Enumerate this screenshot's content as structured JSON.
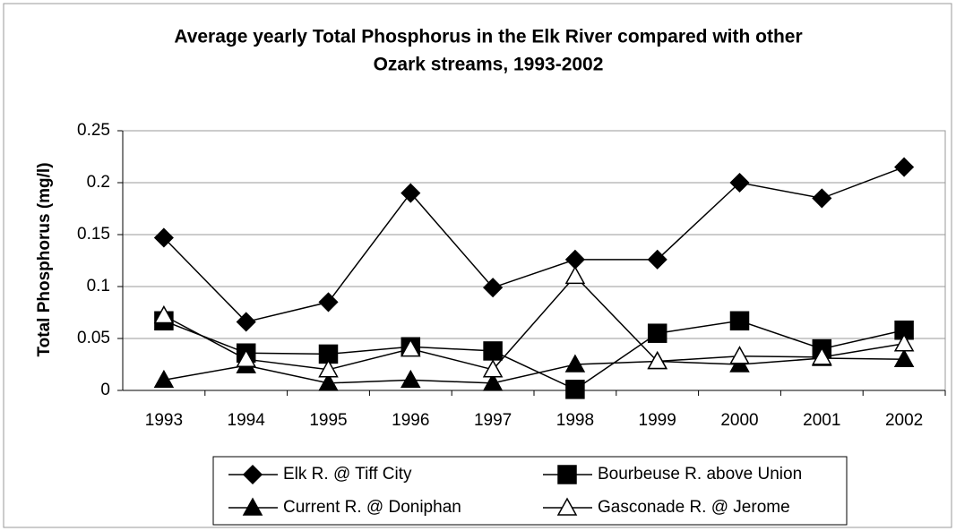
{
  "chart_data": {
    "type": "line",
    "title": [
      "Average yearly Total Phosphorus in the Elk River compared with other",
      "Ozark streams, 1993-2002"
    ],
    "y_label": "Total Phosphorus (mg/l)",
    "categories": [
      "1993",
      "1994",
      "1995",
      "1996",
      "1997",
      "1998",
      "1999",
      "2000",
      "2001",
      "2002"
    ],
    "series": [
      {
        "name": "Elk R. @ Tiff City",
        "color": "#000000",
        "marker": "diamond",
        "values": [
          0.147,
          0.066,
          0.085,
          0.19,
          0.099,
          0.126,
          0.126,
          0.2,
          0.185,
          0.215
        ]
      },
      {
        "name": "Bourbeuse R. above Union",
        "color": "#000000",
        "marker": "square",
        "values": [
          0.067,
          0.036,
          0.035,
          0.042,
          0.038,
          0.001,
          0.055,
          0.067,
          0.04,
          0.058
        ]
      },
      {
        "name": "Current R. @ Doniphan",
        "color": "#000000",
        "marker": "triangle",
        "values": [
          0.01,
          0.024,
          0.007,
          0.01,
          0.007,
          0.025,
          0.028,
          0.025,
          0.031,
          0.03
        ]
      },
      {
        "name": "Gasconade R. @ Jerome",
        "color": "#000000",
        "marker": "triangle-open",
        "values": [
          0.072,
          0.03,
          0.02,
          0.04,
          0.02,
          0.11,
          0.028,
          0.033,
          0.032,
          0.045
        ]
      }
    ],
    "ylim": [
      0,
      0.25
    ],
    "yticks": [
      0,
      0.05,
      0.1,
      0.15,
      0.2,
      0.25
    ],
    "grid": true,
    "legend": "bottom"
  }
}
